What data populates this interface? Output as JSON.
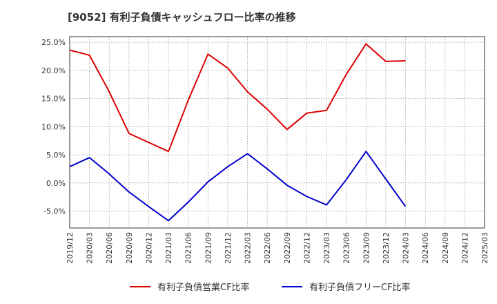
{
  "chart_data": {
    "type": "line",
    "title": "[9052]  有利子負債キャッシュフロー比率の推移",
    "x": [
      "2019/12",
      "2020/03",
      "2020/06",
      "2020/09",
      "2020/12",
      "2021/03",
      "2021/06",
      "2021/09",
      "2021/12",
      "2022/03",
      "2022/06",
      "2022/09",
      "2022/12",
      "2023/03",
      "2023/06",
      "2023/09",
      "2023/12",
      "2024/03",
      "2024/06",
      "2024/09",
      "2024/12",
      "2025/03"
    ],
    "ylim": [
      -8.0,
      26.0
    ],
    "yticks": [
      -5.0,
      0.0,
      5.0,
      10.0,
      15.0,
      20.0,
      25.0
    ],
    "ytick_labels": [
      "-5.0%",
      "0.0%",
      "5.0%",
      "10.0%",
      "15.0%",
      "20.0%",
      "25.0%"
    ],
    "grid": true,
    "legend_position": "bottom",
    "series": [
      {
        "name": "有利子負債営業CF比率",
        "color": "#dd0000",
        "values": [
          23.6,
          22.7,
          16.2,
          8.8,
          7.2,
          5.6,
          14.7,
          22.9,
          20.4,
          16.2,
          13.1,
          9.5,
          12.4,
          12.9,
          19.3,
          24.7,
          21.6,
          21.7,
          null,
          null,
          null,
          null
        ]
      },
      {
        "name": "有利子負債フリーCF比率",
        "color": "#0000cc",
        "values": [
          2.9,
          4.5,
          1.6,
          -1.6,
          -4.2,
          -6.7,
          -3.4,
          0.2,
          2.9,
          5.2,
          2.5,
          -0.4,
          -2.4,
          -3.9,
          0.6,
          5.6,
          0.7,
          -4.2,
          null,
          null,
          null,
          null
        ]
      }
    ]
  }
}
